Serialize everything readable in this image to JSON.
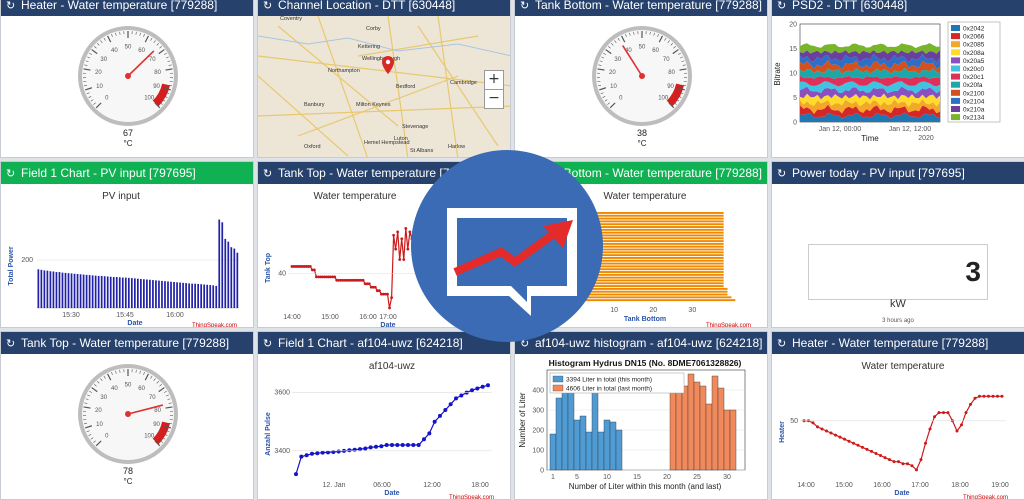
{
  "colors": {
    "header_blue": "#26416b",
    "header_green": "#10b153",
    "logo_blue": "#3a6bb4",
    "trend_red": "#e52a2a",
    "gauge_red": "#d51e1e"
  },
  "panels": {
    "p1": {
      "title": "Heater - Water temperature [779288]",
      "value": "67",
      "unit": "°C",
      "gauge_value": 67
    },
    "p2": {
      "title": "Channel Location - DTT [630448]",
      "zoom_in": "+",
      "zoom_out": "−",
      "places": [
        "Coventry",
        "Corby",
        "Kettering",
        "Wellingborough",
        "Northampton",
        "Bedford",
        "Cambridge",
        "Banbury",
        "Milton Keynes",
        "Stevenage",
        "Luton",
        "Oxford",
        "Hemel Hempstead",
        "St Albans",
        "Harlow"
      ]
    },
    "p3": {
      "title": "Tank Bottom - Water temperature [779288]",
      "value": "38",
      "unit": "°C",
      "gauge_value": 38
    },
    "p4": {
      "title": "PSD2 - DTT [630448]",
      "ylabel": "Bitrate",
      "xlabel": "Time",
      "yticks": [
        "20",
        "15",
        "10",
        "5",
        "0"
      ],
      "xticks": [
        "Jan 12, 00:00",
        "Jan 12, 12:00"
      ],
      "year": "2020",
      "legend": [
        "0x2042",
        "0x2066",
        "0x2085",
        "0x208a",
        "0x20a5",
        "0x20c0",
        "0x20c1",
        "0x20fa",
        "0x2100",
        "0x2104",
        "0x210a",
        "0x2134"
      ],
      "legend_colors": [
        "#1f77b4",
        "#d62728",
        "#f4a82a",
        "#ffdb2a",
        "#8c4fc2",
        "#3fc3e0",
        "#e0305a",
        "#1aa8a8",
        "#d2511f",
        "#2d6fc4",
        "#6b3fa0",
        "#7ab42a"
      ]
    },
    "p5": {
      "title": "Field 1 Chart - PV input [797695]",
      "chart_title": "PV input",
      "ylabel": "Total Power",
      "xlabel": "Date",
      "xticks": [
        "15:30",
        "15:45",
        "16:00"
      ],
      "ytick": "200",
      "credit": "ThingSpeak.com"
    },
    "p6": {
      "title": "Tank Top - Water temperature [779288]",
      "chart_title": "Water temperature",
      "ylabel": "Tank Top",
      "xlabel": "Date",
      "xticks": [
        "14:00",
        "15:00",
        "16:00",
        "17:00"
      ],
      "ytick": "40"
    },
    "p7": {
      "title": "Tank Bottom - Water temperature [779288]",
      "chart_title": "Water temperature",
      "xlabel": "Tank Bottom",
      "xticks": [
        "10",
        "20",
        "30"
      ],
      "credit": "ThingSpeak.com"
    },
    "p8": {
      "title": "Power today - PV input [797695]",
      "value": "3",
      "unit": "kW",
      "ago": "3 hours ago"
    },
    "p9": {
      "title": "Tank Top - Water temperature [779288]",
      "value": "78",
      "unit": "°C",
      "gauge_value": 78
    },
    "p10": {
      "title": "Field 1 Chart - af104-uwz [624218]",
      "chart_title": "af104-uwz",
      "ylabel": "Anzahl Pulse",
      "xlabel": "Date",
      "xticks": [
        "12. Jan",
        "06:00",
        "12:00",
        "18:00"
      ],
      "yticks": [
        "3600",
        "3400"
      ],
      "credit": "ThingSpeak.com"
    },
    "p11": {
      "title": "af104-uwz histogram - af104-uwz [624218]",
      "chart_title": "Histogram Hydrus DN15  (No. 8DME7061328826)",
      "legend": [
        "3394 Liter in total (this month)",
        "4606 Liter in total (last month)"
      ],
      "ylabel": "Number of Liter",
      "xlabel": "Number of Liter within this month (and last)",
      "xticks": [
        "1",
        "5",
        "10",
        "15",
        "20",
        "25",
        "30"
      ],
      "yticks": [
        "400",
        "300",
        "200",
        "100",
        "0"
      ]
    },
    "p12": {
      "title": "Heater - Water temperature [779288]",
      "chart_title": "Water temperature",
      "ylabel": "Heater",
      "xlabel": "Date",
      "xticks": [
        "14:00",
        "15:00",
        "16:00",
        "17:00",
        "18:00",
        "19:00"
      ],
      "ytick": "50",
      "credit": "ThingSpeak.com"
    }
  },
  "chart_data": [
    {
      "type": "bar",
      "title": "PV input",
      "xlabel": "Date",
      "ylabel": "Total Power",
      "values": [
        140,
        138,
        136,
        135,
        133,
        132,
        130,
        130,
        128,
        127,
        126,
        125,
        124,
        123,
        122,
        121,
        120,
        119,
        118,
        117,
        116,
        116,
        115,
        114,
        113,
        112,
        112,
        111,
        110,
        110,
        109,
        108,
        107,
        106,
        105,
        104,
        103,
        102,
        101,
        100,
        99,
        98,
        97,
        96,
        95,
        94,
        93,
        92,
        91,
        90,
        89,
        88,
        88,
        87,
        86,
        85,
        84,
        83,
        82,
        80,
        320,
        310,
        250,
        240,
        220,
        215,
        200
      ],
      "ylim": [
        0,
        340
      ]
    },
    {
      "type": "line",
      "title": "Water temperature",
      "xlabel": "Date",
      "ylabel": "Tank Top",
      "values": [
        42,
        42,
        42,
        42,
        42,
        42,
        42,
        42,
        42,
        42,
        41,
        41,
        39,
        39,
        39,
        39,
        39,
        39,
        39,
        39,
        39,
        39,
        38,
        38,
        38,
        38,
        38,
        38,
        38,
        38,
        38,
        38,
        38,
        38,
        38,
        38,
        37,
        37,
        37,
        36,
        36,
        36,
        35,
        35,
        34,
        34,
        34,
        34,
        30,
        33,
        51,
        47,
        52,
        44,
        50,
        44,
        53,
        47,
        52,
        50,
        51,
        51,
        51
      ],
      "ylim": [
        30,
        56
      ]
    },
    {
      "type": "bar",
      "orientation": "horizontal",
      "title": "Water temperature",
      "xlabel": "Tank Bottom",
      "values": [
        38,
        38,
        38,
        38,
        38,
        38,
        38,
        38,
        38,
        38,
        38,
        38,
        38,
        38,
        38,
        38,
        38,
        38,
        38,
        38,
        38,
        38,
        38,
        38,
        38,
        38,
        38,
        39,
        39,
        39,
        40,
        41
      ],
      "xlim": [
        0,
        45
      ]
    },
    {
      "type": "line",
      "title": "af104-uwz",
      "xlabel": "Date",
      "ylabel": "Anzahl Pulse",
      "values": [
        3320,
        3380,
        3385,
        3390,
        3392,
        3394,
        3395,
        3396,
        3398,
        3400,
        3402,
        3404,
        3406,
        3408,
        3412,
        3414,
        3416,
        3420,
        3420,
        3420,
        3420,
        3420,
        3420,
        3420,
        3440,
        3460,
        3500,
        3520,
        3540,
        3560,
        3580,
        3590,
        3600,
        3608,
        3614,
        3620,
        3625
      ],
      "yticks": [
        3400,
        3600
      ],
      "ylim": [
        3300,
        3650
      ]
    },
    {
      "type": "bar",
      "title": "Histogram Hydrus DN15  (No. 8DME7061328826)",
      "xlabel": "Number of Liter within this month (and last)",
      "ylabel": "Number of Liter",
      "series": [
        {
          "name": "3394 Liter in total (this month)",
          "x": [
            1,
            2,
            3,
            4,
            5,
            6,
            7,
            8,
            9,
            10,
            11,
            12
          ],
          "values": [
            180,
            360,
            460,
            420,
            250,
            270,
            190,
            400,
            190,
            250,
            240,
            200
          ]
        },
        {
          "name": "4606 Liter in total (last month)",
          "x": [
            21,
            22,
            23,
            24,
            25,
            26,
            27,
            28,
            29,
            30,
            31
          ],
          "values": [
            480,
            460,
            420,
            480,
            440,
            420,
            330,
            470,
            410,
            300,
            300
          ]
        }
      ],
      "yticks": [
        0,
        100,
        200,
        300,
        400
      ],
      "ylim": [
        0,
        500
      ]
    },
    {
      "type": "line",
      "title": "Water temperature",
      "xlabel": "Date",
      "ylabel": "Heater",
      "values": [
        50,
        50,
        49,
        47,
        46,
        45,
        44,
        43,
        42,
        41,
        40,
        39,
        38,
        37,
        36,
        35,
        34,
        33,
        32,
        31,
        30,
        30,
        29,
        29,
        28,
        26,
        31,
        39,
        46,
        52,
        54,
        54,
        54,
        50,
        45,
        48,
        54,
        58,
        61,
        62,
        62,
        62,
        62,
        62,
        62
      ],
      "ylim": [
        22,
        68
      ]
    }
  ]
}
